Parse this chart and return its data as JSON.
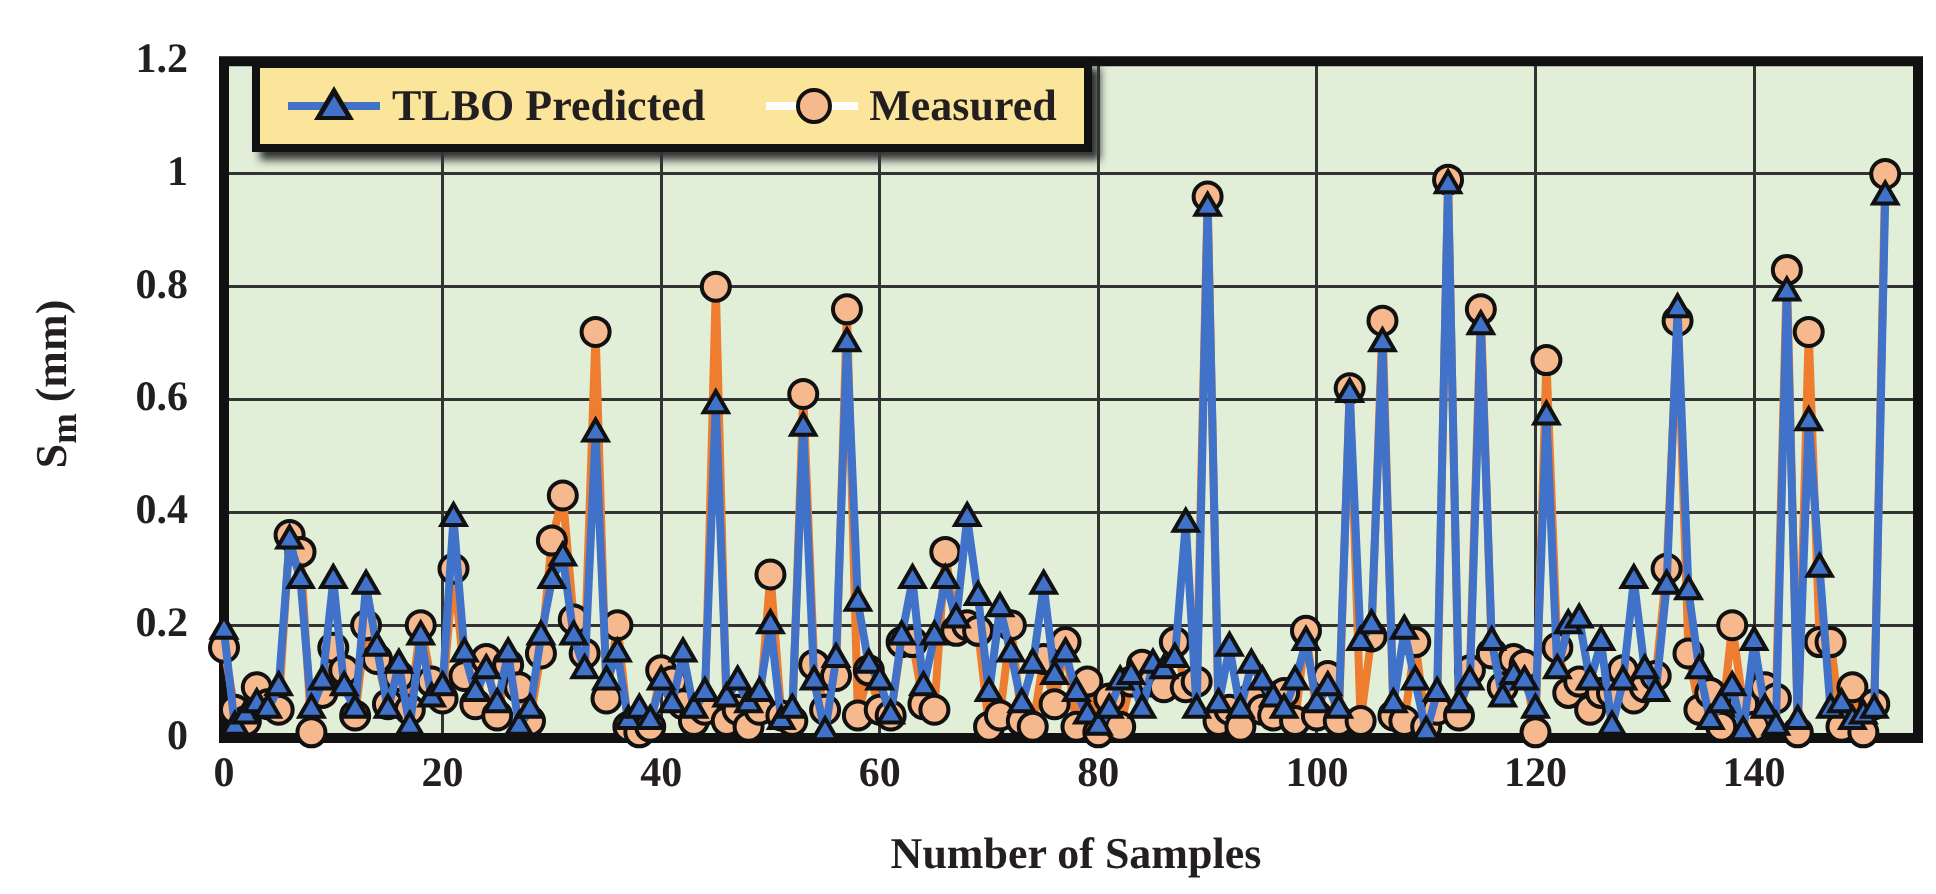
{
  "chart_data": {
    "type": "line",
    "xlabel": "Number of Samples",
    "ylabel": "S$_{m}$ (mm)",
    "x": [
      0,
      1,
      2,
      3,
      4,
      5,
      6,
      7,
      8,
      9,
      10,
      11,
      12,
      13,
      14,
      15,
      16,
      17,
      18,
      19,
      20,
      21,
      22,
      23,
      24,
      25,
      26,
      27,
      28,
      29,
      30,
      31,
      32,
      33,
      34,
      35,
      36,
      37,
      38,
      39,
      40,
      41,
      42,
      43,
      44,
      45,
      46,
      47,
      48,
      49,
      50,
      51,
      52,
      53,
      54,
      55,
      56,
      57,
      58,
      59,
      60,
      61,
      62,
      63,
      64,
      65,
      66,
      67,
      68,
      69,
      70,
      71,
      72,
      73,
      74,
      75,
      76,
      77,
      78,
      79,
      80,
      81,
      82,
      83,
      84,
      85,
      86,
      87,
      88,
      89,
      90,
      91,
      92,
      93,
      94,
      95,
      96,
      97,
      98,
      99,
      100,
      101,
      102,
      103,
      104,
      105,
      106,
      107,
      108,
      109,
      110,
      111,
      112,
      113,
      114,
      115,
      116,
      117,
      118,
      119,
      120,
      121,
      122,
      123,
      124,
      125,
      126,
      127,
      128,
      129,
      130,
      131,
      132,
      133,
      134,
      135,
      136,
      137,
      138,
      139,
      140,
      141,
      142,
      143,
      144,
      145,
      146,
      147,
      148,
      149,
      150,
      151,
      152
    ],
    "series": [
      {
        "name": "TLBO Predicted",
        "color": "#3f72c8",
        "marker": "triangle",
        "values": [
          0.19,
          0.02,
          0.04,
          0.06,
          0.05,
          0.09,
          0.35,
          0.28,
          0.05,
          0.1,
          0.28,
          0.09,
          0.05,
          0.27,
          0.16,
          0.05,
          0.13,
          0.02,
          0.18,
          0.07,
          0.09,
          0.39,
          0.15,
          0.08,
          0.12,
          0.06,
          0.15,
          0.02,
          0.05,
          0.18,
          0.28,
          0.32,
          0.18,
          0.12,
          0.54,
          0.1,
          0.15,
          0.03,
          0.05,
          0.03,
          0.1,
          0.06,
          0.15,
          0.05,
          0.08,
          0.59,
          0.07,
          0.1,
          0.06,
          0.08,
          0.2,
          0.03,
          0.05,
          0.55,
          0.1,
          0.01,
          0.14,
          0.7,
          0.24,
          0.13,
          0.1,
          0.04,
          0.18,
          0.28,
          0.09,
          0.18,
          0.28,
          0.21,
          0.39,
          0.25,
          0.08,
          0.23,
          0.15,
          0.06,
          0.13,
          0.27,
          0.11,
          0.15,
          0.08,
          0.04,
          0.02,
          0.05,
          0.1,
          0.11,
          0.05,
          0.13,
          0.12,
          0.14,
          0.38,
          0.05,
          0.94,
          0.06,
          0.16,
          0.05,
          0.13,
          0.1,
          0.07,
          0.05,
          0.1,
          0.17,
          0.06,
          0.09,
          0.05,
          0.61,
          0.17,
          0.2,
          0.7,
          0.06,
          0.19,
          0.1,
          0.01,
          0.08,
          0.98,
          0.06,
          0.1,
          0.73,
          0.17,
          0.07,
          0.11,
          0.1,
          0.05,
          0.57,
          0.12,
          0.2,
          0.21,
          0.1,
          0.17,
          0.02,
          0.1,
          0.28,
          0.12,
          0.08,
          0.27,
          0.76,
          0.26,
          0.12,
          0.03,
          0.06,
          0.09,
          0.01,
          0.17,
          0.05,
          0.02,
          0.79,
          0.03,
          0.56,
          0.3,
          0.05,
          0.06,
          0.03,
          0.04,
          0.05,
          0.96
        ]
      },
      {
        "name": "Measured",
        "color": "#ee7d2f",
        "marker": "circle",
        "values": [
          0.16,
          0.05,
          0.03,
          0.09,
          0.06,
          0.05,
          0.36,
          0.33,
          0.01,
          0.08,
          0.16,
          0.12,
          0.04,
          0.2,
          0.14,
          0.06,
          0.11,
          0.05,
          0.2,
          0.1,
          0.07,
          0.3,
          0.11,
          0.06,
          0.14,
          0.04,
          0.13,
          0.09,
          0.03,
          0.15,
          0.35,
          0.43,
          0.21,
          0.15,
          0.72,
          0.07,
          0.2,
          0.02,
          0.01,
          0.02,
          0.12,
          0.1,
          0.06,
          0.03,
          0.05,
          0.8,
          0.03,
          0.05,
          0.02,
          0.05,
          0.29,
          0.04,
          0.03,
          0.61,
          0.13,
          0.05,
          0.11,
          0.76,
          0.04,
          0.12,
          0.05,
          0.04,
          0.17,
          0.17,
          0.06,
          0.05,
          0.33,
          0.19,
          0.2,
          0.19,
          0.02,
          0.04,
          0.2,
          0.03,
          0.02,
          0.14,
          0.06,
          0.17,
          0.02,
          0.1,
          0.01,
          0.07,
          0.02,
          0.1,
          0.13,
          0.1,
          0.09,
          0.17,
          0.09,
          0.1,
          0.96,
          0.03,
          0.05,
          0.02,
          0.07,
          0.05,
          0.04,
          0.08,
          0.03,
          0.19,
          0.04,
          0.11,
          0.03,
          0.62,
          0.03,
          0.18,
          0.74,
          0.04,
          0.03,
          0.17,
          0.02,
          0.05,
          0.99,
          0.04,
          0.12,
          0.76,
          0.15,
          0.09,
          0.14,
          0.13,
          0.01,
          0.67,
          0.16,
          0.08,
          0.1,
          0.05,
          0.08,
          0.08,
          0.12,
          0.07,
          0.09,
          0.11,
          0.3,
          0.74,
          0.15,
          0.05,
          0.08,
          0.02,
          0.2,
          0.06,
          0.02,
          0.09,
          0.07,
          0.83,
          0.01,
          0.72,
          0.17,
          0.17,
          0.02,
          0.09,
          0.01,
          0.06,
          1.0
        ]
      }
    ],
    "xlim": [
      0,
      155
    ],
    "xticks": [
      0,
      20,
      40,
      60,
      80,
      100,
      120,
      140
    ],
    "ylim": [
      0,
      1.2
    ],
    "yticks": [
      0,
      0.2,
      0.4,
      0.6,
      0.8,
      1,
      1.2
    ],
    "grid": true,
    "legend": "top left",
    "line_style": "solid"
  }
}
